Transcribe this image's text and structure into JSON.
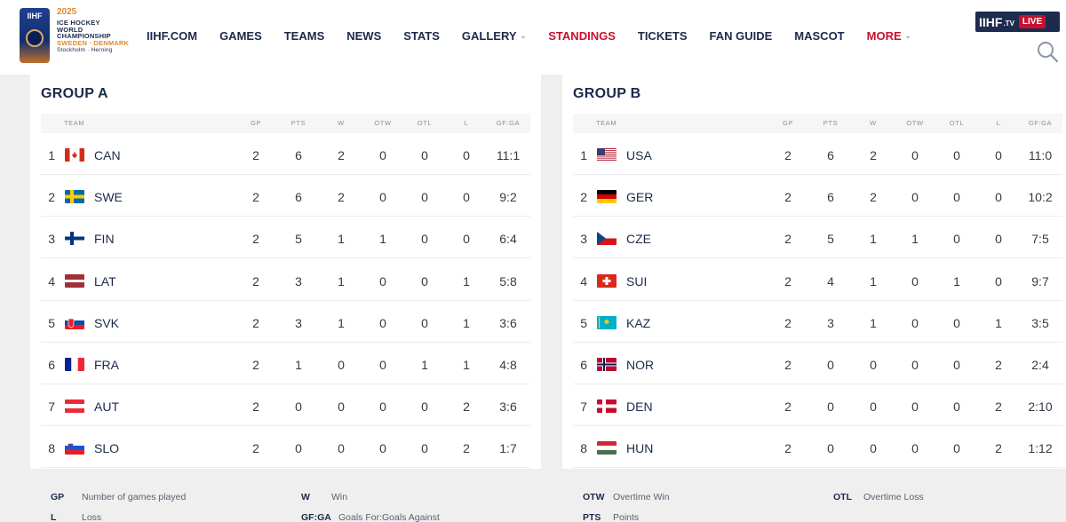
{
  "header": {
    "logo": {
      "badge_text": "IIHF",
      "year": "2025",
      "line1": "ICE HOCKEY",
      "line2": "WORLD",
      "line3": "CHAMPIONSHIP",
      "line4": "SWEDEN · DENMARK",
      "line5": "Stockholm · Herning"
    },
    "nav": [
      {
        "label": "IIHF.COM"
      },
      {
        "label": "GAMES"
      },
      {
        "label": "TEAMS"
      },
      {
        "label": "NEWS"
      },
      {
        "label": "STATS"
      },
      {
        "label": "GALLERY",
        "dropdown": true
      },
      {
        "label": "STANDINGS",
        "active": true
      },
      {
        "label": "TICKETS"
      },
      {
        "label": "FAN GUIDE"
      },
      {
        "label": "MASCOT"
      },
      {
        "label": "MORE",
        "dropdown": true,
        "active": true
      }
    ],
    "tv": {
      "brand": "IIHF",
      "suffix": ".TV",
      "live": "LIVE"
    },
    "search_icon": "search-icon"
  },
  "columns": [
    "TEAM",
    "GP",
    "PTS",
    "W",
    "OTW",
    "OTL",
    "L",
    "GF:GA"
  ],
  "groups": [
    {
      "title": "GROUP A",
      "rows": [
        {
          "rank": "1",
          "team": "CAN",
          "flag": "ca",
          "gp": "2",
          "pts": "6",
          "w": "2",
          "otw": "0",
          "otl": "0",
          "l": "0",
          "gfga": "11:1"
        },
        {
          "rank": "2",
          "team": "SWE",
          "flag": "se",
          "gp": "2",
          "pts": "6",
          "w": "2",
          "otw": "0",
          "otl": "0",
          "l": "0",
          "gfga": "9:2"
        },
        {
          "rank": "3",
          "team": "FIN",
          "flag": "fi",
          "gp": "2",
          "pts": "5",
          "w": "1",
          "otw": "1",
          "otl": "0",
          "l": "0",
          "gfga": "6:4"
        },
        {
          "rank": "4",
          "team": "LAT",
          "flag": "lv",
          "gp": "2",
          "pts": "3",
          "w": "1",
          "otw": "0",
          "otl": "0",
          "l": "1",
          "gfga": "5:8"
        },
        {
          "rank": "5",
          "team": "SVK",
          "flag": "sk",
          "gp": "2",
          "pts": "3",
          "w": "1",
          "otw": "0",
          "otl": "0",
          "l": "1",
          "gfga": "3:6"
        },
        {
          "rank": "6",
          "team": "FRA",
          "flag": "fr",
          "gp": "2",
          "pts": "1",
          "w": "0",
          "otw": "0",
          "otl": "1",
          "l": "1",
          "gfga": "4:8"
        },
        {
          "rank": "7",
          "team": "AUT",
          "flag": "at",
          "gp": "2",
          "pts": "0",
          "w": "0",
          "otw": "0",
          "otl": "0",
          "l": "2",
          "gfga": "3:6"
        },
        {
          "rank": "8",
          "team": "SLO",
          "flag": "si",
          "gp": "2",
          "pts": "0",
          "w": "0",
          "otw": "0",
          "otl": "0",
          "l": "2",
          "gfga": "1:7"
        }
      ]
    },
    {
      "title": "GROUP B",
      "rows": [
        {
          "rank": "1",
          "team": "USA",
          "flag": "us",
          "gp": "2",
          "pts": "6",
          "w": "2",
          "otw": "0",
          "otl": "0",
          "l": "0",
          "gfga": "11:0"
        },
        {
          "rank": "2",
          "team": "GER",
          "flag": "de",
          "gp": "2",
          "pts": "6",
          "w": "2",
          "otw": "0",
          "otl": "0",
          "l": "0",
          "gfga": "10:2"
        },
        {
          "rank": "3",
          "team": "CZE",
          "flag": "cz",
          "gp": "2",
          "pts": "5",
          "w": "1",
          "otw": "1",
          "otl": "0",
          "l": "0",
          "gfga": "7:5"
        },
        {
          "rank": "4",
          "team": "SUI",
          "flag": "ch",
          "gp": "2",
          "pts": "4",
          "w": "1",
          "otw": "0",
          "otl": "1",
          "l": "0",
          "gfga": "9:7"
        },
        {
          "rank": "5",
          "team": "KAZ",
          "flag": "kz",
          "gp": "2",
          "pts": "3",
          "w": "1",
          "otw": "0",
          "otl": "0",
          "l": "1",
          "gfga": "3:5"
        },
        {
          "rank": "6",
          "team": "NOR",
          "flag": "no",
          "gp": "2",
          "pts": "0",
          "w": "0",
          "otw": "0",
          "otl": "0",
          "l": "2",
          "gfga": "2:4"
        },
        {
          "rank": "7",
          "team": "DEN",
          "flag": "dk",
          "gp": "2",
          "pts": "0",
          "w": "0",
          "otw": "0",
          "otl": "0",
          "l": "2",
          "gfga": "2:10"
        },
        {
          "rank": "8",
          "team": "HUN",
          "flag": "hu",
          "gp": "2",
          "pts": "0",
          "w": "0",
          "otw": "0",
          "otl": "0",
          "l": "2",
          "gfga": "1:12"
        }
      ]
    }
  ],
  "legend": [
    {
      "key": "GP",
      "label": "Number of games played"
    },
    {
      "key": "W",
      "label": "Win"
    },
    {
      "key": "OTW",
      "label": "Overtime Win"
    },
    {
      "key": "OTL",
      "label": "Overtime Loss"
    },
    {
      "key": "L",
      "label": "Loss"
    },
    {
      "key": "GF:GA",
      "label": "Goals For:Goals Against"
    },
    {
      "key": "PTS",
      "label": "Points"
    }
  ],
  "colors": {
    "navy": "#1b2a4a",
    "accent_red": "#c8102e",
    "background": "#efefef"
  }
}
